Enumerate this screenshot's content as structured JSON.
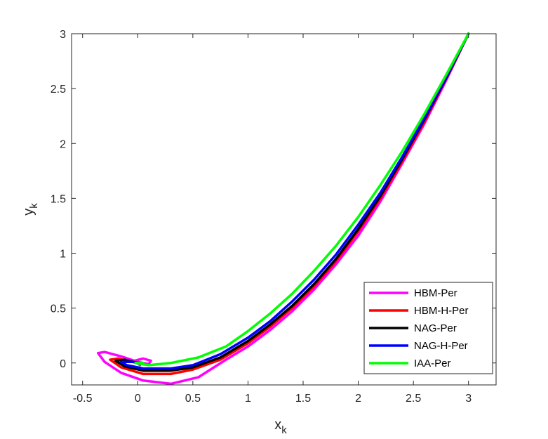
{
  "chart_data": {
    "type": "line",
    "title": "",
    "xlabel": "x",
    "xlabel_sub": "k",
    "ylabel": "y",
    "ylabel_sub": "k",
    "xlim": [
      -0.6,
      3.25
    ],
    "ylim": [
      -0.2,
      3.0
    ],
    "xticks": [
      -0.5,
      0,
      0.5,
      1,
      1.5,
      2,
      2.5,
      3
    ],
    "xtick_labels": [
      "-0.5",
      "0",
      "0.5",
      "1",
      "1.5",
      "2",
      "2.5",
      "3"
    ],
    "yticks": [
      0,
      0.5,
      1,
      1.5,
      2,
      2.5,
      3
    ],
    "ytick_labels": [
      "0",
      "0.5",
      "1",
      "1.5",
      "2",
      "2.5",
      "3"
    ],
    "grid": false,
    "legend_position": "bottom-right",
    "series": [
      {
        "name": "HBM-Per",
        "color": "#ff00ff",
        "points": [
          [
            3.0,
            3.0
          ],
          [
            2.8,
            2.58
          ],
          [
            2.6,
            2.18
          ],
          [
            2.4,
            1.82
          ],
          [
            2.2,
            1.47
          ],
          [
            2.0,
            1.16
          ],
          [
            1.8,
            0.9
          ],
          [
            1.6,
            0.67
          ],
          [
            1.4,
            0.47
          ],
          [
            1.2,
            0.3
          ],
          [
            1.0,
            0.15
          ],
          [
            0.8,
            0.03
          ],
          [
            0.55,
            -0.13
          ],
          [
            0.3,
            -0.19
          ],
          [
            0.05,
            -0.16
          ],
          [
            -0.15,
            -0.09
          ],
          [
            -0.3,
            0.01
          ],
          [
            -0.36,
            0.09
          ],
          [
            -0.3,
            0.1
          ],
          [
            -0.15,
            0.06
          ],
          [
            0.0,
            0.01
          ],
          [
            0.1,
            -0.01
          ],
          [
            0.12,
            0.02
          ],
          [
            0.05,
            0.04
          ],
          [
            -0.03,
            0.02
          ],
          [
            0.02,
            -0.02
          ]
        ]
      },
      {
        "name": "HBM-H-Per",
        "color": "#ff0000",
        "points": [
          [
            3.0,
            3.0
          ],
          [
            2.8,
            2.6
          ],
          [
            2.6,
            2.2
          ],
          [
            2.4,
            1.84
          ],
          [
            2.2,
            1.5
          ],
          [
            2.0,
            1.2
          ],
          [
            1.8,
            0.93
          ],
          [
            1.6,
            0.7
          ],
          [
            1.4,
            0.5
          ],
          [
            1.2,
            0.33
          ],
          [
            1.0,
            0.18
          ],
          [
            0.75,
            0.03
          ],
          [
            0.5,
            -0.06
          ],
          [
            0.3,
            -0.1
          ],
          [
            0.05,
            -0.1
          ],
          [
            -0.15,
            -0.04
          ],
          [
            -0.25,
            0.03
          ],
          [
            -0.18,
            0.04
          ],
          [
            -0.05,
            0.01
          ],
          [
            0.05,
            -0.01
          ]
        ]
      },
      {
        "name": "NAG-Per",
        "color": "#000000",
        "points": [
          [
            3.0,
            3.0
          ],
          [
            2.8,
            2.6
          ],
          [
            2.6,
            2.22
          ],
          [
            2.4,
            1.86
          ],
          [
            2.2,
            1.52
          ],
          [
            2.0,
            1.22
          ],
          [
            1.8,
            0.95
          ],
          [
            1.6,
            0.72
          ],
          [
            1.4,
            0.52
          ],
          [
            1.2,
            0.35
          ],
          [
            1.0,
            0.2
          ],
          [
            0.75,
            0.05
          ],
          [
            0.5,
            -0.04
          ],
          [
            0.3,
            -0.07
          ],
          [
            0.05,
            -0.07
          ],
          [
            -0.12,
            -0.03
          ],
          [
            -0.2,
            0.02
          ],
          [
            -0.12,
            0.03
          ],
          [
            0.0,
            0.0
          ]
        ]
      },
      {
        "name": "NAG-H-Per",
        "color": "#0000ff",
        "points": [
          [
            3.0,
            3.0
          ],
          [
            2.8,
            2.61
          ],
          [
            2.6,
            2.23
          ],
          [
            2.4,
            1.88
          ],
          [
            2.2,
            1.55
          ],
          [
            2.0,
            1.26
          ],
          [
            1.8,
            0.99
          ],
          [
            1.6,
            0.76
          ],
          [
            1.4,
            0.56
          ],
          [
            1.2,
            0.38
          ],
          [
            1.0,
            0.23
          ],
          [
            0.75,
            0.08
          ],
          [
            0.5,
            -0.02
          ],
          [
            0.3,
            -0.05
          ],
          [
            0.05,
            -0.05
          ],
          [
            -0.1,
            -0.02
          ],
          [
            -0.15,
            0.01
          ],
          [
            -0.05,
            0.01
          ],
          [
            0.02,
            0.0
          ]
        ]
      },
      {
        "name": "IAA-Per",
        "color": "#00ff00",
        "points": [
          [
            3.0,
            3.0
          ],
          [
            2.8,
            2.63
          ],
          [
            2.6,
            2.27
          ],
          [
            2.4,
            1.93
          ],
          [
            2.2,
            1.62
          ],
          [
            2.0,
            1.33
          ],
          [
            1.8,
            1.07
          ],
          [
            1.6,
            0.84
          ],
          [
            1.4,
            0.63
          ],
          [
            1.2,
            0.45
          ],
          [
            1.0,
            0.29
          ],
          [
            0.8,
            0.15
          ],
          [
            0.55,
            0.05
          ],
          [
            0.3,
            0.0
          ],
          [
            0.1,
            -0.02
          ],
          [
            -0.02,
            0.0
          ],
          [
            0.05,
            0.0
          ]
        ]
      }
    ]
  }
}
